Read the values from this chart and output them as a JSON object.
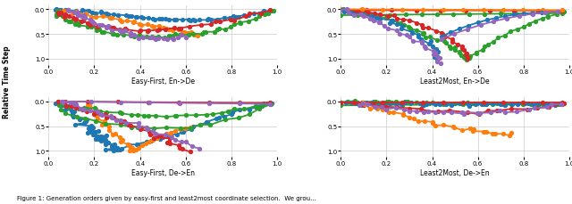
{
  "titles": [
    "Easy-First, En->De",
    "Least2Most, En->De",
    "Easy-First, De->En",
    "Least2Most, De->En"
  ],
  "ylabel": "Relative Time Step",
  "background_color": "#ffffff",
  "grid_color": "#cccccc",
  "colors": {
    "blue": "#1f77b4",
    "orange": "#ff7f0e",
    "green": "#2ca02c",
    "red": "#d62728",
    "purple": "#9467bd"
  },
  "figsize": [
    6.4,
    2.3
  ],
  "dpi": 100,
  "caption": "Figure 1: Generation orders given by easy-first and least2most coordinate selection.  We grou..."
}
